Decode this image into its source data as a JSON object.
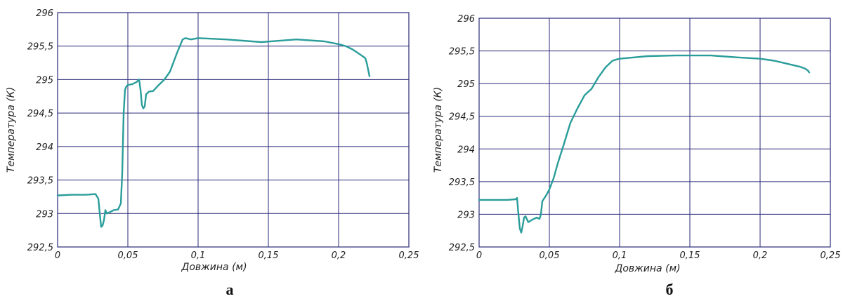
{
  "chart_data": [
    {
      "type": "line",
      "panel_label": "а",
      "xlabel": "Довжина (м)",
      "ylabel": "Температура (К)",
      "xlim": [
        0,
        0.25
      ],
      "ylim": [
        292.5,
        296
      ],
      "x_ticks": [
        "0",
        "0,05",
        "0,1",
        "0,15",
        "0,2",
        "0,25"
      ],
      "y_ticks": [
        "292,5",
        "293",
        "293,5",
        "294",
        "294,5",
        "295",
        "295,5",
        "296"
      ],
      "grid": true,
      "color": "#2a9d9a",
      "series": [
        {
          "x": [
            0,
            0.01,
            0.02,
            0.027,
            0.029,
            0.03,
            0.031,
            0.032,
            0.033,
            0.034,
            0.035,
            0.037,
            0.04,
            0.043,
            0.045,
            0.046,
            0.047,
            0.048,
            0.049,
            0.05,
            0.053,
            0.056,
            0.058,
            0.059,
            0.06,
            0.061,
            0.062,
            0.063,
            0.065,
            0.068,
            0.072,
            0.076,
            0.08,
            0.085,
            0.089,
            0.091,
            0.095,
            0.1,
            0.12,
            0.145,
            0.17,
            0.19,
            0.2,
            0.205,
            0.21,
            0.215,
            0.219,
            0.22,
            0.221,
            0.222
          ],
          "y": [
            293.27,
            293.28,
            293.28,
            293.29,
            293.22,
            293.0,
            292.8,
            292.82,
            292.9,
            293.05,
            293.0,
            293.02,
            293.05,
            293.06,
            293.15,
            293.6,
            294.5,
            294.85,
            294.9,
            294.92,
            294.93,
            294.96,
            295.0,
            294.85,
            294.62,
            294.57,
            294.6,
            294.78,
            294.82,
            294.83,
            294.92,
            295.0,
            295.12,
            295.4,
            295.6,
            295.62,
            295.6,
            295.62,
            295.6,
            295.56,
            295.6,
            295.57,
            295.53,
            295.5,
            295.45,
            295.38,
            295.32,
            295.25,
            295.15,
            295.05
          ]
        }
      ]
    },
    {
      "type": "line",
      "panel_label": "б",
      "xlabel": "Довжина (м)",
      "ylabel": "Температура (К)",
      "xlim": [
        0,
        0.25
      ],
      "ylim": [
        292.5,
        296
      ],
      "x_ticks": [
        "0",
        "0,05",
        "0,1",
        "0,15",
        "0,2",
        "0,25"
      ],
      "y_ticks": [
        "292,5",
        "293",
        "293,5",
        "294",
        "294,5",
        "295",
        "295,5",
        "296"
      ],
      "grid": true,
      "color": "#2a9d9a",
      "series": [
        {
          "x": [
            0,
            0.01,
            0.02,
            0.026,
            0.027,
            0.028,
            0.029,
            0.03,
            0.031,
            0.032,
            0.033,
            0.035,
            0.038,
            0.041,
            0.043,
            0.044,
            0.045,
            0.048,
            0.05,
            0.053,
            0.056,
            0.06,
            0.065,
            0.07,
            0.075,
            0.08,
            0.085,
            0.09,
            0.095,
            0.098,
            0.1,
            0.12,
            0.14,
            0.165,
            0.185,
            0.2,
            0.21,
            0.22,
            0.228,
            0.232,
            0.234,
            0.235
          ],
          "y": [
            293.22,
            293.22,
            293.22,
            293.23,
            293.25,
            293.0,
            292.78,
            292.72,
            292.82,
            292.95,
            292.97,
            292.88,
            292.92,
            292.95,
            292.93,
            293.0,
            293.2,
            293.3,
            293.38,
            293.55,
            293.78,
            294.05,
            294.4,
            294.62,
            294.82,
            294.92,
            295.1,
            295.25,
            295.35,
            295.37,
            295.38,
            295.42,
            295.43,
            295.43,
            295.4,
            295.38,
            295.35,
            295.3,
            295.26,
            295.23,
            295.2,
            295.17
          ]
        }
      ]
    }
  ]
}
